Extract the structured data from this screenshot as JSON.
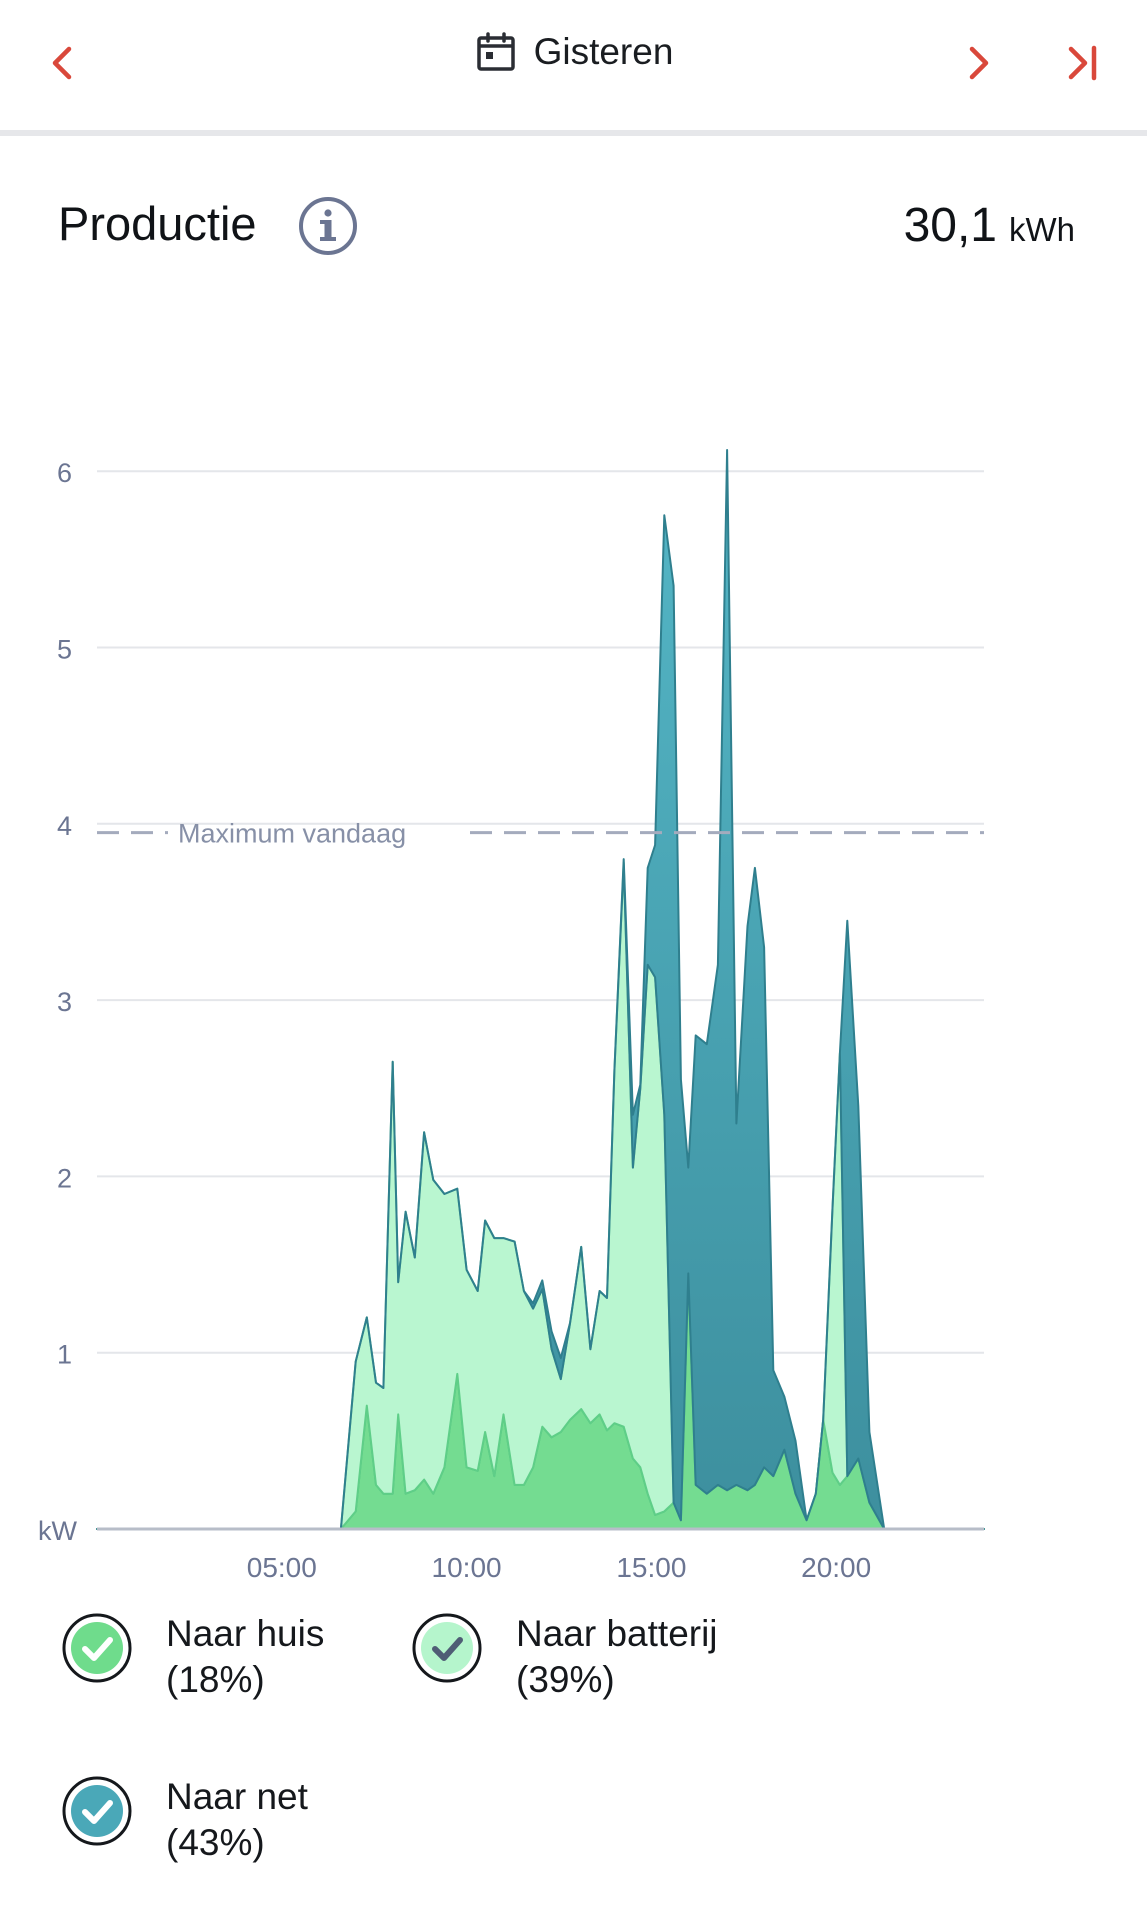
{
  "header": {
    "date_label": "Gisteren",
    "icons": {
      "back": "chevron-left-icon",
      "calendar": "calendar-icon",
      "forward": "chevron-right-icon",
      "last": "skip-to-end-icon"
    },
    "accent_color": "#d9483b"
  },
  "production": {
    "title": "Productie",
    "info_icon": "info-icon",
    "total_value": "30,1",
    "total_unit": "kWh"
  },
  "chart_data": {
    "type": "area",
    "stacked": true,
    "ylabel": "kW",
    "ylim": [
      0,
      6.3
    ],
    "xlim": [
      0,
      24
    ],
    "y_ticks": [
      "1",
      "2",
      "3",
      "4",
      "5",
      "6"
    ],
    "x_ticks": [
      "05:00",
      "10:00",
      "15:00",
      "20:00"
    ],
    "grid": true,
    "reference_line": {
      "label": "Maximum vandaag",
      "value": 3.95,
      "style": "dashed"
    },
    "x": [
      0,
      6.6,
      7.0,
      7.3,
      7.55,
      7.75,
      8.0,
      8.15,
      8.35,
      8.6,
      8.85,
      9.1,
      9.4,
      9.75,
      10.0,
      10.3,
      10.5,
      10.75,
      11.0,
      11.3,
      11.55,
      11.8,
      12.05,
      12.3,
      12.55,
      12.8,
      13.1,
      13.35,
      13.6,
      13.8,
      14.0,
      14.25,
      14.5,
      14.7,
      14.9,
      15.1,
      15.35,
      15.6,
      15.8,
      16.0,
      16.2,
      16.5,
      16.8,
      17.05,
      17.3,
      17.6,
      17.8,
      18.05,
      18.3,
      18.6,
      18.9,
      19.2,
      19.45,
      19.65,
      19.9,
      20.1,
      20.3,
      20.6,
      20.9,
      21.3,
      24
    ],
    "series": [
      {
        "name": "Naar huis",
        "percent": "(18%)",
        "color": "#6fdc8c",
        "values": [
          0,
          0,
          0.1,
          0.7,
          0.25,
          0.2,
          0.2,
          0.65,
          0.2,
          0.22,
          0.28,
          0.2,
          0.35,
          0.88,
          0.35,
          0.33,
          0.55,
          0.3,
          0.65,
          0.25,
          0.25,
          0.35,
          0.58,
          0.52,
          0.55,
          0.62,
          0.68,
          0.6,
          0.65,
          0.56,
          0.6,
          0.58,
          0.4,
          0.35,
          0.2,
          0.08,
          0.1,
          0.15,
          0.05,
          1.45,
          0.25,
          0.2,
          0.25,
          0.22,
          0.25,
          0.22,
          0.25,
          0.35,
          0.3,
          0.45,
          0.2,
          0.05,
          0.2,
          0.62,
          0.32,
          0.25,
          0.3,
          0.4,
          0.15,
          0,
          0
        ]
      },
      {
        "name": "Naar batterij",
        "percent": "(39%)",
        "color": "#b5f5cc",
        "values": [
          0,
          0,
          0.85,
          0.5,
          0.58,
          0.6,
          2.45,
          0.75,
          1.6,
          1.32,
          1.97,
          1.78,
          1.55,
          1.05,
          1.12,
          1.02,
          1.2,
          1.35,
          1.0,
          1.38,
          1.1,
          0.9,
          0.78,
          0.5,
          0.3,
          0.55,
          0.92,
          0.42,
          0.7,
          0.75,
          2.0,
          3.2,
          1.65,
          2.15,
          3.0,
          3.05,
          2.25,
          0,
          0,
          0,
          0,
          0,
          0,
          0,
          0,
          0,
          0,
          0,
          0,
          0,
          0,
          0,
          0,
          0,
          1.5,
          2.45,
          0,
          0,
          0,
          0,
          0
        ]
      },
      {
        "name": "Naar net",
        "percent": "(43%)",
        "color": "#4aa8b8",
        "values": [
          0,
          0,
          0,
          0,
          0,
          0,
          0,
          0,
          0,
          0,
          0,
          0,
          0,
          0,
          0,
          0,
          0,
          0,
          0,
          0,
          0,
          0.03,
          0.05,
          0.1,
          0.12,
          0,
          0,
          0,
          0,
          0,
          0,
          0.02,
          0.3,
          0.02,
          0.55,
          0.75,
          3.4,
          5.2,
          2.5,
          0.6,
          2.55,
          2.55,
          2.95,
          5.9,
          2.05,
          3.2,
          3.5,
          2.95,
          0.6,
          0.3,
          0.3,
          0,
          0,
          0,
          0,
          0,
          3.15,
          2.0,
          0.4,
          0,
          0
        ]
      }
    ]
  },
  "legend": [
    {
      "label": "Naar huis",
      "percent": "(18%)",
      "check_fill": "#6fdc8c",
      "check_mark": "#ffffff",
      "icon": "check-circle-icon"
    },
    {
      "label": "Naar batterij",
      "percent": "(39%)",
      "check_fill": "#b5f5cc",
      "check_mark": "#4f5d75",
      "icon": "check-circle-icon"
    },
    {
      "label": "Naar net",
      "percent": "(43%)",
      "check_fill": "#4aa8b8",
      "check_mark": "#ffffff",
      "icon": "check-circle-icon"
    }
  ]
}
